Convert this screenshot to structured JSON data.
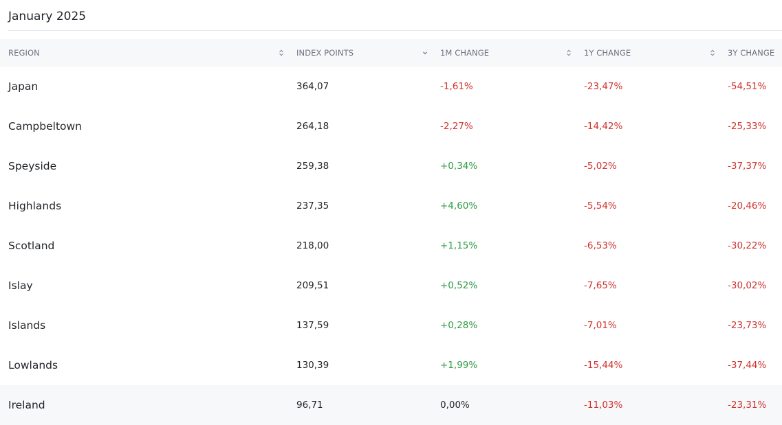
{
  "title": "January 2025",
  "columns": [
    {
      "label": "REGION",
      "sort": "neutral"
    },
    {
      "label": "INDEX POINTS",
      "sort": "descending"
    },
    {
      "label": "1M CHANGE",
      "sort": "neutral"
    },
    {
      "label": "1Y CHANGE",
      "sort": "neutral"
    },
    {
      "label": "3Y CHANGE",
      "sort": "neutral"
    }
  ],
  "colors": {
    "negative": "#d0312d",
    "positive": "#2e9a44",
    "header_bg": "#f7f8fa"
  },
  "rows": [
    {
      "region": "Japan",
      "index_points": "364,07",
      "change_1m": "-1,61%",
      "change_1y": "-23,47%",
      "change_3y": "-54,51%"
    },
    {
      "region": "Campbeltown",
      "index_points": "264,18",
      "change_1m": "-2,27%",
      "change_1y": "-14,42%",
      "change_3y": "-25,33%"
    },
    {
      "region": "Speyside",
      "index_points": "259,38",
      "change_1m": "+0,34%",
      "change_1y": "-5,02%",
      "change_3y": "-37,37%"
    },
    {
      "region": "Highlands",
      "index_points": "237,35",
      "change_1m": "+4,60%",
      "change_1y": "-5,54%",
      "change_3y": "-20,46%"
    },
    {
      "region": "Scotland",
      "index_points": "218,00",
      "change_1m": "+1,15%",
      "change_1y": "-6,53%",
      "change_3y": "-30,22%"
    },
    {
      "region": "Islay",
      "index_points": "209,51",
      "change_1m": "+0,52%",
      "change_1y": "-7,65%",
      "change_3y": "-30,02%"
    },
    {
      "region": "Islands",
      "index_points": "137,59",
      "change_1m": "+0,28%",
      "change_1y": "-7,01%",
      "change_3y": "-23,73%"
    },
    {
      "region": "Lowlands",
      "index_points": "130,39",
      "change_1m": "+1,99%",
      "change_1y": "-15,44%",
      "change_3y": "-37,44%"
    },
    {
      "region": "Ireland",
      "index_points": "96,71",
      "change_1m": "0,00%",
      "change_1y": "-11,03%",
      "change_3y": "-23,31%"
    }
  ]
}
